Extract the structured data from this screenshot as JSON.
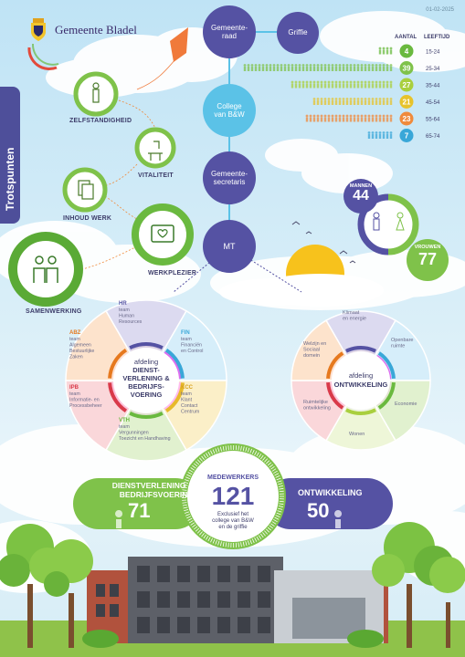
{
  "header": {
    "brand": "Gemeente Bladel",
    "date": "01-02-2025"
  },
  "side_tab": "Trotspunten",
  "trotspunten": [
    "ZELFSTANDIGHEID",
    "VITALITEIT",
    "INHOUD WERK",
    "WERKPLEZIER",
    "SAMENWERKING"
  ],
  "org": {
    "gemeenteraad": [
      "Gemeente-",
      "raad"
    ],
    "griffie": "Griffie",
    "college": [
      "College",
      "van B&W"
    ],
    "secretaris": [
      "Gemeente-",
      "secretaris"
    ],
    "mt": "MT"
  },
  "age": {
    "headers": {
      "count": "AANTAL",
      "age": "LEEFTIJD"
    },
    "rows": [
      {
        "count": "4",
        "range": "15-24",
        "color": "#6ab93f"
      },
      {
        "count": "39",
        "range": "25-34",
        "color": "#7fc24a"
      },
      {
        "count": "27",
        "range": "35-44",
        "color": "#a9cf3e"
      },
      {
        "count": "21",
        "range": "45-54",
        "color": "#e7c32b"
      },
      {
        "count": "23",
        "range": "55-64",
        "color": "#f08a3b"
      },
      {
        "count": "7",
        "range": "65-74",
        "color": "#39a7d8"
      }
    ]
  },
  "gender": {
    "men_label": "MANNEN",
    "men": "44",
    "women_label": "VROUWEN",
    "women": "77"
  },
  "afd_dienst": {
    "center": [
      "afdeling",
      "DIENST-",
      "VERLENING &",
      "BEDRIJFS-",
      "VOERING"
    ],
    "teams": [
      {
        "code": "HR",
        "lines": [
          "team",
          "Human",
          "Resources"
        ],
        "color": "#5552a3"
      },
      {
        "code": "FIN",
        "lines": [
          "team",
          "Financiën",
          "en Control"
        ],
        "color": "#39a7d8"
      },
      {
        "code": "KCC",
        "lines": [
          "team",
          "Klant",
          "Contact",
          "Centrum"
        ],
        "color": "#d9a21e"
      },
      {
        "code": "VTH",
        "lines": [
          "team",
          "Vergunningen",
          "Toezicht en Handhaving"
        ],
        "color": "#6ab93f"
      },
      {
        "code": "IPB",
        "lines": [
          "team",
          "Informatie- en",
          "Processbeheer"
        ],
        "color": "#d93a4a"
      },
      {
        "code": "ABZ",
        "lines": [
          "team",
          "Algemeen",
          "Bestuurlijke",
          "Zaken"
        ],
        "color": "#e6791e"
      }
    ]
  },
  "afd_ontw": {
    "center": [
      "afdeling",
      "ONTWIKKELING"
    ],
    "domains": [
      [
        "Klimaat",
        "en energie"
      ],
      [
        "Openbare",
        "ruimte"
      ],
      [
        "Economie"
      ],
      [
        "Wonen"
      ],
      [
        "Ruimtelijke",
        "ontwikkeling"
      ],
      [
        "Welzijn en",
        "Sociaal",
        "domein"
      ]
    ]
  },
  "totals": {
    "dv_label": [
      "DIENSTVERLENING &",
      "BEDRIJFSVOERING"
    ],
    "dv_count": "71",
    "medewerkers_label": "MEDEWERKERS",
    "total": "121",
    "total_note": [
      "Exclusief het",
      "college van B&W",
      "en de griffie"
    ],
    "ontw_label": "ONTWIKKELING",
    "ontw_count": "50"
  },
  "colors": {
    "purple": "#5552a3",
    "green": "#6ab93f",
    "blue": "#5bc2e7",
    "sky": "#cfe9f6"
  }
}
